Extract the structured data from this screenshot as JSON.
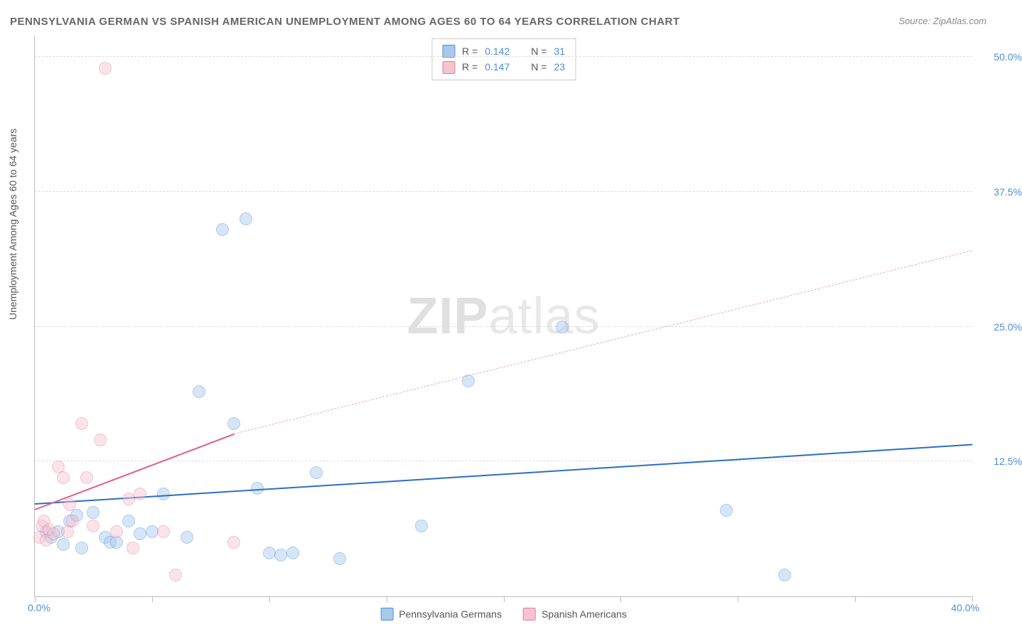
{
  "title": "PENNSYLVANIA GERMAN VS SPANISH AMERICAN UNEMPLOYMENT AMONG AGES 60 TO 64 YEARS CORRELATION CHART",
  "source": "Source: ZipAtlas.com",
  "y_axis_label": "Unemployment Among Ages 60 to 64 years",
  "watermark": {
    "bold": "ZIP",
    "thin": "atlas"
  },
  "chart": {
    "type": "scatter",
    "background_color": "#ffffff",
    "grid_color": "#dddddd",
    "axis_color": "#bbbbbb",
    "xlim": [
      0,
      40
    ],
    "ylim": [
      0,
      52
    ],
    "x_ticks": [
      0,
      5,
      10,
      15,
      20,
      25,
      30,
      35,
      40
    ],
    "x_tick_labels": {
      "0": "0.0%",
      "40": "40.0%"
    },
    "y_gridlines": [
      12.5,
      25.0,
      37.5,
      50.0
    ],
    "y_tick_labels": [
      "12.5%",
      "25.0%",
      "37.5%",
      "50.0%"
    ],
    "point_radius": 9,
    "point_opacity": 0.45,
    "series": [
      {
        "name": "Pennsylvania Germans",
        "fill_color": "#a8c8ec",
        "stroke_color": "#4a8fd8",
        "R": "0.142",
        "N": "31",
        "points": [
          [
            0.5,
            6.0
          ],
          [
            0.7,
            5.5
          ],
          [
            1.0,
            6.0
          ],
          [
            1.2,
            4.8
          ],
          [
            1.5,
            7.0
          ],
          [
            1.8,
            7.5
          ],
          [
            2.0,
            4.5
          ],
          [
            2.5,
            7.8
          ],
          [
            3.0,
            5.5
          ],
          [
            3.2,
            5.0
          ],
          [
            3.5,
            5.0
          ],
          [
            4.0,
            7.0
          ],
          [
            4.5,
            5.8
          ],
          [
            5.0,
            6.0
          ],
          [
            5.5,
            9.5
          ],
          [
            6.5,
            5.5
          ],
          [
            7.0,
            19.0
          ],
          [
            8.0,
            34.0
          ],
          [
            8.5,
            16.0
          ],
          [
            9.0,
            35.0
          ],
          [
            9.5,
            10.0
          ],
          [
            10.0,
            4.0
          ],
          [
            10.5,
            3.8
          ],
          [
            11.0,
            4.0
          ],
          [
            12.0,
            11.5
          ],
          [
            13.0,
            3.5
          ],
          [
            16.5,
            6.5
          ],
          [
            18.5,
            20.0
          ],
          [
            22.5,
            25.0
          ],
          [
            29.5,
            8.0
          ],
          [
            32.0,
            2.0
          ]
        ],
        "trend": {
          "x1": 0,
          "y1": 8.5,
          "x2": 40,
          "y2": 14.0,
          "color": "#2b6fc4",
          "width": 2.5,
          "dash": false
        }
      },
      {
        "name": "Spanish Americans",
        "fill_color": "#f5c4cf",
        "stroke_color": "#e87ba0",
        "R": "0.147",
        "N": "23",
        "points": [
          [
            0.2,
            5.5
          ],
          [
            0.3,
            6.5
          ],
          [
            0.4,
            7.0
          ],
          [
            0.5,
            5.2
          ],
          [
            0.6,
            6.2
          ],
          [
            0.8,
            5.8
          ],
          [
            1.0,
            12.0
          ],
          [
            1.2,
            11.0
          ],
          [
            1.4,
            6.0
          ],
          [
            1.5,
            8.5
          ],
          [
            1.6,
            7.0
          ],
          [
            2.0,
            16.0
          ],
          [
            2.2,
            11.0
          ],
          [
            2.5,
            6.5
          ],
          [
            2.8,
            14.5
          ],
          [
            3.0,
            49.0
          ],
          [
            3.5,
            6.0
          ],
          [
            4.0,
            9.0
          ],
          [
            4.2,
            4.5
          ],
          [
            4.5,
            9.5
          ],
          [
            5.5,
            6.0
          ],
          [
            6.0,
            2.0
          ],
          [
            8.5,
            5.0
          ]
        ],
        "trend_solid": {
          "x1": 0,
          "y1": 8.0,
          "x2": 8.5,
          "y2": 15.0,
          "color": "#e65a8a",
          "width": 2.5
        },
        "trend_dash": {
          "x1": 8.5,
          "y1": 15.0,
          "x2": 40,
          "y2": 32.0,
          "color": "#f0a8bc",
          "width": 1.5
        }
      }
    ]
  },
  "legend_top": {
    "r_label": "R =",
    "n_label": "N ="
  },
  "legend_bottom": [
    "Pennsylvania Germans",
    "Spanish Americans"
  ]
}
